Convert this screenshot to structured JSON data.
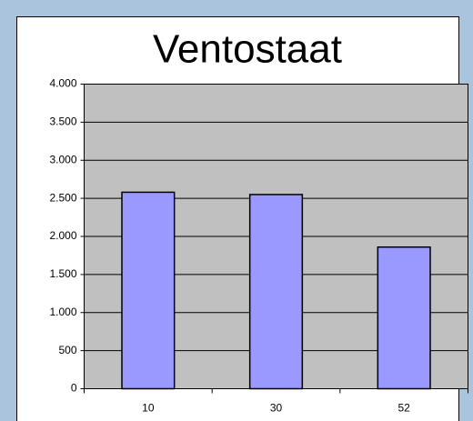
{
  "chart_data": {
    "type": "bar",
    "title": "Ventostaat",
    "categories": [
      "10",
      "30",
      "52"
    ],
    "values": [
      2580,
      2550,
      1860
    ],
    "color": "#9999ff",
    "ylim": [
      0,
      4000
    ],
    "yticks": [
      0,
      500,
      {
        "value": 1000,
        "label": "1.000"
      },
      {
        "value": 1500,
        "label": "1.500"
      },
      {
        "value": 2000,
        "label": "2.000"
      },
      {
        "value": 2500,
        "label": "2.500"
      },
      {
        "value": 3000,
        "label": "3.000"
      },
      {
        "value": 3500,
        "label": "3.500"
      },
      {
        "value": 4000,
        "label": "4.000"
      }
    ],
    "grid": true
  }
}
